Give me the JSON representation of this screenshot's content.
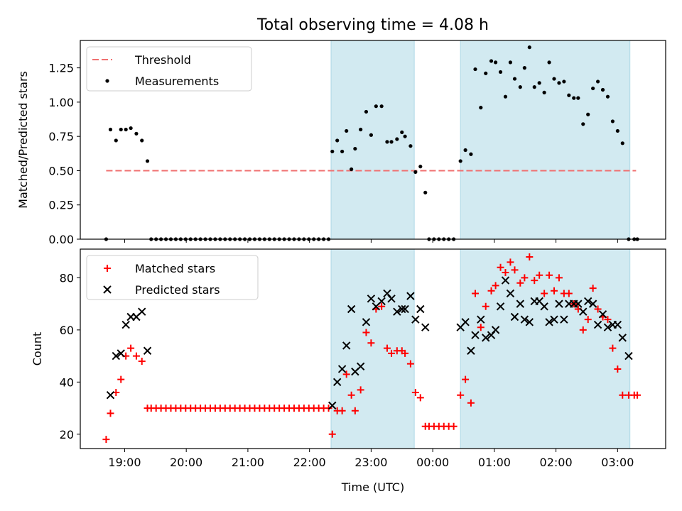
{
  "title": "Total observing time = 4.08 h",
  "colors": {
    "threshold": "#f07070",
    "measurements": "#000000",
    "matched": "#ff0000",
    "predicted": "#000000",
    "observing_band": "#add8e6"
  },
  "chart_data": [
    {
      "type": "scatter",
      "panel": "top",
      "title": "Total observing time = 4.08 h",
      "xlabel": "",
      "ylabel": "Matched/Predicted stars",
      "x_unit": "hours since 19:00 UTC",
      "xlim": [
        -0.72,
        8.78
      ],
      "ylim": [
        0.0,
        1.45
      ],
      "yticks": [
        0.0,
        0.25,
        0.5,
        0.75,
        1.0,
        1.25
      ],
      "ytick_labels": [
        "0.00",
        "0.25",
        "0.50",
        "0.75",
        "1.00",
        "1.25"
      ],
      "xticks": [
        0,
        1,
        2,
        3,
        4,
        5,
        6,
        7,
        8
      ],
      "xtick_labels": [
        "",
        "",
        "",
        "",
        "",
        "",
        "",
        "",
        ""
      ],
      "observing_bands": [
        [
          3.35,
          4.7
        ],
        [
          5.45,
          8.2
        ]
      ],
      "threshold": {
        "name": "Threshold",
        "y": 0.5,
        "x_range": [
          -0.3,
          8.3
        ]
      },
      "legend": {
        "position": "top-left",
        "entries": [
          {
            "name": "Threshold",
            "marker": "dashed-line"
          },
          {
            "name": "Measurements",
            "marker": "dot"
          }
        ]
      },
      "series": [
        {
          "name": "Measurements",
          "marker": "dot",
          "x": [
            -0.3,
            -0.23,
            -0.14,
            -0.06,
            0.02,
            0.1,
            0.19,
            0.28,
            0.37,
            0.43,
            0.51,
            0.59,
            0.67,
            0.75,
            0.83,
            0.91,
            0.99,
            1.07,
            1.15,
            1.23,
            1.31,
            1.39,
            1.47,
            1.55,
            1.63,
            1.71,
            1.79,
            1.87,
            1.95,
            2.03,
            2.11,
            2.19,
            2.27,
            2.35,
            2.43,
            2.51,
            2.59,
            2.67,
            2.75,
            2.83,
            2.91,
            2.99,
            3.07,
            3.15,
            3.23,
            3.31,
            3.37,
            3.45,
            3.53,
            3.6,
            3.68,
            3.74,
            3.83,
            3.92,
            4.0,
            4.08,
            4.17,
            4.26,
            4.33,
            4.42,
            4.5,
            4.55,
            4.64,
            4.72,
            4.8,
            4.88,
            4.94,
            5.02,
            5.1,
            5.18,
            5.26,
            5.34,
            5.45,
            5.53,
            5.62,
            5.69,
            5.78,
            5.86,
            5.95,
            6.02,
            6.1,
            6.18,
            6.26,
            6.33,
            6.42,
            6.49,
            6.57,
            6.65,
            6.73,
            6.81,
            6.89,
            6.97,
            7.05,
            7.13,
            7.21,
            7.29,
            7.36,
            7.44,
            7.52,
            7.6,
            7.68,
            7.76,
            7.84,
            7.92,
            8.0,
            8.08,
            8.18,
            8.27,
            8.32
          ],
          "y": [
            0.0,
            0.8,
            0.72,
            0.8,
            0.8,
            0.81,
            0.77,
            0.72,
            0.57,
            0.0,
            0.0,
            0.0,
            0.0,
            0.0,
            0.0,
            0.0,
            0.0,
            0.0,
            0.0,
            0.0,
            0.0,
            0.0,
            0.0,
            0.0,
            0.0,
            0.0,
            0.0,
            0.0,
            0.0,
            0.0,
            0.0,
            0.0,
            0.0,
            0.0,
            0.0,
            0.0,
            0.0,
            0.0,
            0.0,
            0.0,
            0.0,
            0.0,
            0.0,
            0.0,
            0.0,
            0.0,
            0.64,
            0.72,
            0.64,
            0.79,
            0.51,
            0.66,
            0.8,
            0.93,
            0.76,
            0.97,
            0.97,
            0.71,
            0.71,
            0.73,
            0.78,
            0.75,
            0.68,
            0.49,
            0.53,
            0.34,
            0.0,
            0.0,
            0.0,
            0.0,
            0.0,
            0.0,
            0.57,
            0.65,
            0.62,
            1.24,
            0.96,
            1.21,
            1.3,
            1.29,
            1.22,
            1.04,
            1.29,
            1.17,
            1.11,
            1.25,
            1.4,
            1.11,
            1.14,
            1.07,
            1.29,
            1.17,
            1.14,
            1.15,
            1.05,
            1.03,
            1.03,
            0.84,
            0.91,
            1.1,
            1.15,
            1.09,
            1.04,
            0.86,
            0.79,
            0.7,
            0.0,
            0.0,
            0.0
          ]
        }
      ]
    },
    {
      "type": "scatter",
      "panel": "bottom",
      "xlabel": "Time (UTC)",
      "ylabel": "Count",
      "x_unit": "hours since 19:00 UTC",
      "xlim": [
        -0.72,
        8.78
      ],
      "ylim": [
        14.5,
        91.0
      ],
      "yticks": [
        20,
        40,
        60,
        80
      ],
      "ytick_labels": [
        "20",
        "40",
        "60",
        "80"
      ],
      "xticks": [
        0,
        1,
        2,
        3,
        4,
        5,
        6,
        7,
        8
      ],
      "xtick_labels": [
        "19:00",
        "20:00",
        "21:00",
        "22:00",
        "23:00",
        "00:00",
        "01:00",
        "02:00",
        "03:00"
      ],
      "observing_bands": [
        [
          3.35,
          4.7
        ],
        [
          5.45,
          8.2
        ]
      ],
      "legend": {
        "position": "top-left",
        "entries": [
          {
            "name": "Matched stars",
            "marker": "plus"
          },
          {
            "name": "Predicted stars",
            "marker": "x"
          }
        ]
      },
      "series": [
        {
          "name": "Matched stars",
          "marker": "plus",
          "x": [
            -0.3,
            -0.23,
            -0.14,
            -0.06,
            0.02,
            0.1,
            0.19,
            0.28,
            0.37,
            0.43,
            0.51,
            0.59,
            0.67,
            0.75,
            0.83,
            0.91,
            0.99,
            1.07,
            1.15,
            1.23,
            1.31,
            1.39,
            1.47,
            1.55,
            1.63,
            1.71,
            1.79,
            1.87,
            1.95,
            2.03,
            2.11,
            2.19,
            2.27,
            2.35,
            2.43,
            2.51,
            2.59,
            2.67,
            2.75,
            2.83,
            2.91,
            2.99,
            3.07,
            3.15,
            3.23,
            3.31,
            3.37,
            3.45,
            3.53,
            3.6,
            3.68,
            3.74,
            3.83,
            3.92,
            4.0,
            4.08,
            4.17,
            4.26,
            4.33,
            4.42,
            4.5,
            4.55,
            4.64,
            4.72,
            4.8,
            4.88,
            4.94,
            5.02,
            5.1,
            5.18,
            5.26,
            5.34,
            5.45,
            5.53,
            5.62,
            5.69,
            5.78,
            5.86,
            5.95,
            6.02,
            6.1,
            6.18,
            6.26,
            6.33,
            6.42,
            6.49,
            6.57,
            6.65,
            6.73,
            6.81,
            6.89,
            6.97,
            7.05,
            7.13,
            7.21,
            7.29,
            7.36,
            7.44,
            7.52,
            7.6,
            7.68,
            7.76,
            7.84,
            7.92,
            8.0,
            8.08,
            8.18,
            8.27,
            8.32
          ],
          "y": [
            18,
            28,
            36,
            41,
            50,
            53,
            50,
            48,
            30,
            30,
            30,
            30,
            30,
            30,
            30,
            30,
            30,
            30,
            30,
            30,
            30,
            30,
            30,
            30,
            30,
            30,
            30,
            30,
            30,
            30,
            30,
            30,
            30,
            30,
            30,
            30,
            30,
            30,
            30,
            30,
            30,
            30,
            30,
            30,
            30,
            30,
            20,
            29,
            29,
            43,
            35,
            29,
            37,
            59,
            55,
            68,
            69,
            53,
            51,
            52,
            52,
            51,
            47,
            36,
            34,
            23,
            23,
            23,
            23,
            23,
            23,
            23,
            35,
            41,
            32,
            74,
            61,
            69,
            75,
            77,
            84,
            82,
            86,
            83,
            78,
            80,
            88,
            79,
            81,
            74,
            81,
            75,
            80,
            74,
            74,
            70,
            68,
            60,
            64,
            76,
            68,
            65,
            64,
            53,
            45,
            35,
            35,
            35,
            35
          ]
        },
        {
          "name": "Predicted stars",
          "marker": "x",
          "x": [
            -0.23,
            -0.14,
            -0.06,
            0.02,
            0.1,
            0.19,
            0.28,
            0.37,
            3.37,
            3.45,
            3.53,
            3.6,
            3.68,
            3.74,
            3.83,
            3.92,
            4.0,
            4.08,
            4.17,
            4.26,
            4.33,
            4.42,
            4.5,
            4.55,
            4.64,
            4.72,
            4.8,
            4.88,
            5.45,
            5.53,
            5.62,
            5.69,
            5.78,
            5.86,
            5.95,
            6.02,
            6.1,
            6.18,
            6.26,
            6.33,
            6.42,
            6.49,
            6.57,
            6.65,
            6.73,
            6.81,
            6.89,
            6.97,
            7.05,
            7.13,
            7.21,
            7.29,
            7.36,
            7.44,
            7.52,
            7.6,
            7.68,
            7.76,
            7.84,
            7.92,
            8.0,
            8.08,
            8.18
          ],
          "y": [
            35,
            50,
            51,
            62,
            65,
            65,
            67,
            52,
            31,
            40,
            45,
            54,
            68,
            44,
            46,
            63,
            72,
            69,
            71,
            74,
            72,
            67,
            68,
            68,
            73,
            64,
            68,
            61,
            61,
            63,
            52,
            58,
            64,
            57,
            58,
            60,
            69,
            79,
            74,
            65,
            70,
            64,
            63,
            71,
            71,
            69,
            63,
            64,
            70,
            64,
            70,
            70,
            70,
            67,
            71,
            70,
            62,
            66,
            61,
            62,
            62,
            57,
            50
          ]
        }
      ]
    }
  ]
}
